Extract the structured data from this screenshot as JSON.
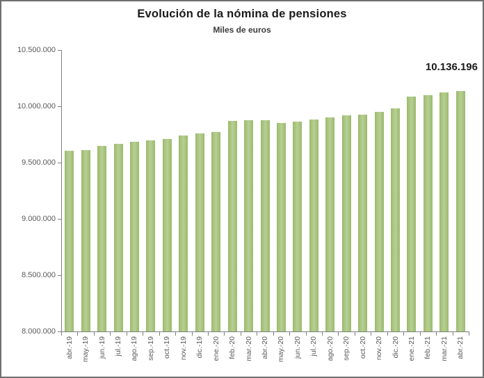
{
  "chart": {
    "title": "Evolución de la nómina de pensiones",
    "subtitle": "Miles de euros",
    "annotation_label": "10.136.196"
  },
  "colors": {
    "bar": "#a9c57d",
    "axis": "#7f7f7f",
    "tick_text": "#595959",
    "title_text": "#1a1a1a",
    "frame_border": "#6f6f6f"
  },
  "chart_data": {
    "type": "bar",
    "title": "Evolución de la nómina de pensiones",
    "subtitle": "Miles de euros",
    "xlabel": "",
    "ylabel": "Miles de euros",
    "ylim": [
      8000000,
      10500000
    ],
    "grid": false,
    "legend": "none",
    "y_ticks": [
      "10.500.000",
      "10.000.000",
      "9.500.000",
      "9.000.000",
      "8.500.000",
      "8.000.000"
    ],
    "y_tick_values": [
      10500000,
      10000000,
      9500000,
      9000000,
      8500000,
      8000000
    ],
    "categories": [
      "abr.-19",
      "may.-19",
      "jun.-19",
      "jul.-19",
      "ago.-19",
      "sep.-19",
      "oct.-19",
      "nov.-19",
      "dic.-19",
      "ene.-20",
      "feb.-20",
      "mar.-20",
      "abr.-20",
      "may.-20",
      "jun.-20",
      "jul.-20",
      "ago.-20",
      "sep.-20",
      "oct.-20",
      "nov.-20",
      "dic.-20",
      "ene.-21",
      "feb.-21",
      "mar.-21",
      "abr.-21"
    ],
    "values": [
      9602000,
      9614000,
      9646000,
      9668000,
      9684000,
      9697000,
      9713000,
      9740000,
      9761000,
      9769000,
      9872000,
      9876000,
      9879000,
      9851000,
      9862000,
      9882000,
      9899000,
      9917000,
      9929000,
      9953000,
      9984000,
      10089000,
      10101000,
      10122000,
      10136196
    ],
    "annotation": {
      "category": "abr.-21",
      "text": "10.136.196",
      "value": 10136196
    }
  }
}
